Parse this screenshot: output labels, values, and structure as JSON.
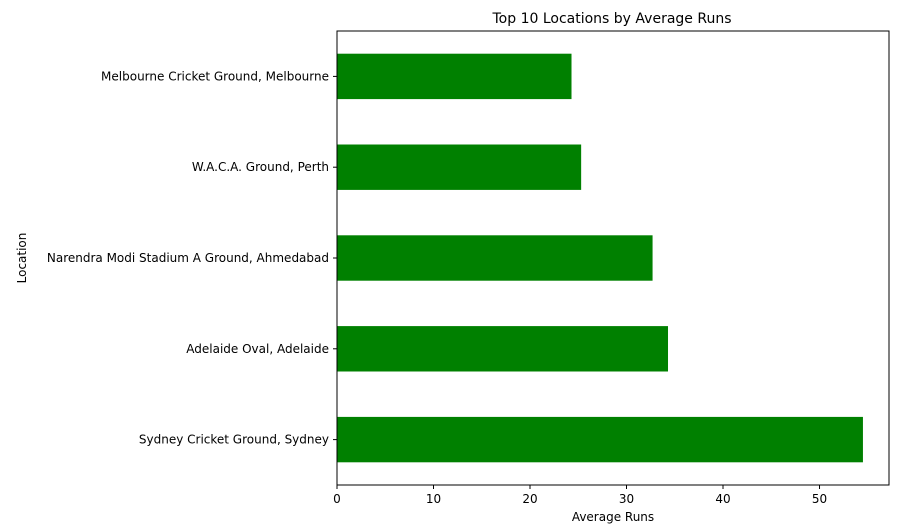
{
  "chart_data": {
    "type": "bar",
    "orientation": "horizontal",
    "title": "Top 10 Locations by Average Runs",
    "xlabel": "Average Runs",
    "ylabel": "Location",
    "categories": [
      "Melbourne Cricket Ground, Melbourne",
      "W.A.C.A. Ground, Perth",
      "Narendra Modi Stadium A Ground, Ahmedabad",
      "Adelaide Oval, Adelaide",
      "Sydney Cricket Ground, Sydney"
    ],
    "values": [
      24.3,
      25.3,
      32.7,
      34.3,
      54.5
    ],
    "xlim": [
      0,
      57.2
    ],
    "xticks": [
      0,
      10,
      20,
      30,
      40,
      50
    ],
    "grid": false,
    "bar_color": "#008000"
  }
}
